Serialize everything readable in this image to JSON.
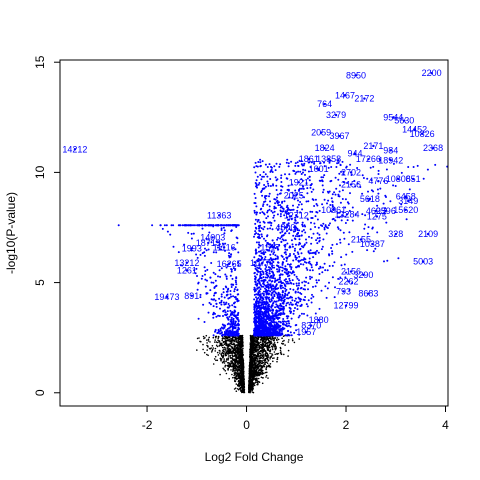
{
  "chart_data": {
    "type": "scatter",
    "xlabel": "Log2 Fold Change",
    "ylabel": "-log10(P-value)",
    "xlim": [
      -3.75,
      4.05
    ],
    "ylim": [
      -0.6,
      15.1
    ],
    "x_ticks": [
      -2,
      0,
      2,
      4
    ],
    "y_ticks": [
      0,
      5,
      10,
      15
    ],
    "grid": false,
    "colors": {
      "nonsignificant": "#000000",
      "significant": "#0000ff"
    },
    "significance_threshold_y": 2.6,
    "labeled_points": [
      {
        "label": "8950",
        "x": 2.2,
        "y": 14.4
      },
      {
        "label": "2200",
        "x": 3.72,
        "y": 14.5
      },
      {
        "label": "1467",
        "x": 1.98,
        "y": 13.5
      },
      {
        "label": "2172",
        "x": 2.37,
        "y": 13.35
      },
      {
        "label": "764",
        "x": 1.57,
        "y": 13.1
      },
      {
        "label": "3279",
        "x": 1.8,
        "y": 12.6
      },
      {
        "label": "9544",
        "x": 2.95,
        "y": 12.5
      },
      {
        "label": "5630",
        "x": 3.17,
        "y": 12.35
      },
      {
        "label": "14452",
        "x": 3.38,
        "y": 11.95
      },
      {
        "label": "10826",
        "x": 3.53,
        "y": 11.75
      },
      {
        "label": "2059",
        "x": 1.5,
        "y": 11.8
      },
      {
        "label": "3967",
        "x": 1.87,
        "y": 11.65
      },
      {
        "label": "2171",
        "x": 2.55,
        "y": 11.2
      },
      {
        "label": "1824",
        "x": 1.57,
        "y": 11.1
      },
      {
        "label": "944",
        "x": 2.18,
        "y": 10.85
      },
      {
        "label": "984",
        "x": 2.9,
        "y": 11.0
      },
      {
        "label": "2368",
        "x": 3.75,
        "y": 11.1
      },
      {
        "label": "14212",
        "x": -3.45,
        "y": 11.05
      },
      {
        "label": "1861",
        "x": 1.25,
        "y": 10.6
      },
      {
        "label": "13858",
        "x": 1.65,
        "y": 10.6
      },
      {
        "label": "17266",
        "x": 2.45,
        "y": 10.6
      },
      {
        "label": "18942",
        "x": 2.9,
        "y": 10.55
      },
      {
        "label": "1001",
        "x": 1.45,
        "y": 10.15
      },
      {
        "label": "2702",
        "x": 2.1,
        "y": 10.0
      },
      {
        "label": "4776",
        "x": 2.65,
        "y": 9.6
      },
      {
        "label": "10806",
        "x": 3.05,
        "y": 9.7
      },
      {
        "label": "851",
        "x": 3.35,
        "y": 9.7
      },
      {
        "label": "1921",
        "x": 1.05,
        "y": 9.55
      },
      {
        "label": "2156",
        "x": 2.1,
        "y": 9.45
      },
      {
        "label": "2025",
        "x": 0.95,
        "y": 8.95
      },
      {
        "label": "5618",
        "x": 2.48,
        "y": 8.8
      },
      {
        "label": "6458",
        "x": 3.2,
        "y": 8.9
      },
      {
        "label": "3149",
        "x": 3.25,
        "y": 8.7
      },
      {
        "label": "10961",
        "x": 1.75,
        "y": 8.3
      },
      {
        "label": "4695",
        "x": 2.6,
        "y": 8.25
      },
      {
        "label": "2396",
        "x": 2.8,
        "y": 8.25
      },
      {
        "label": "15620",
        "x": 3.2,
        "y": 8.3
      },
      {
        "label": "12712",
        "x": 1.0,
        "y": 8.05
      },
      {
        "label": "13284",
        "x": 2.02,
        "y": 8.1
      },
      {
        "label": "1275",
        "x": 2.62,
        "y": 8.0
      },
      {
        "label": "11363",
        "x": -0.55,
        "y": 8.05
      },
      {
        "label": "4800",
        "x": 0.78,
        "y": 7.5
      },
      {
        "label": "328",
        "x": 3.0,
        "y": 7.2
      },
      {
        "label": "2109",
        "x": 3.65,
        "y": 7.2
      },
      {
        "label": "14003",
        "x": -0.68,
        "y": 7.05
      },
      {
        "label": "2155",
        "x": 2.3,
        "y": 6.95
      },
      {
        "label": "10387",
        "x": 2.53,
        "y": 6.75
      },
      {
        "label": "18713",
        "x": -0.77,
        "y": 6.8
      },
      {
        "label": "1993",
        "x": -1.1,
        "y": 6.55
      },
      {
        "label": "11116",
        "x": -0.45,
        "y": 6.6
      },
      {
        "label": "1517",
        "x": 0.48,
        "y": 6.6
      },
      {
        "label": "5003",
        "x": 3.55,
        "y": 5.95
      },
      {
        "label": "13212",
        "x": -1.2,
        "y": 5.9
      },
      {
        "label": "16265",
        "x": -0.35,
        "y": 5.85
      },
      {
        "label": "10771",
        "x": 0.32,
        "y": 5.9
      },
      {
        "label": "1261",
        "x": -1.2,
        "y": 5.55
      },
      {
        "label": "2156",
        "x": 2.1,
        "y": 5.5
      },
      {
        "label": "3290",
        "x": 2.35,
        "y": 5.35
      },
      {
        "label": "2262",
        "x": 2.05,
        "y": 5.05
      },
      {
        "label": "8683",
        "x": 2.45,
        "y": 4.5
      },
      {
        "label": "793",
        "x": 1.95,
        "y": 4.6
      },
      {
        "label": "19473",
        "x": -1.6,
        "y": 4.35
      },
      {
        "label": "891",
        "x": -1.1,
        "y": 4.4
      },
      {
        "label": "12799",
        "x": 2.0,
        "y": 3.95
      },
      {
        "label": "1880",
        "x": 1.45,
        "y": 3.3
      },
      {
        "label": "8370",
        "x": 1.3,
        "y": 3.05
      },
      {
        "label": "1957",
        "x": 1.2,
        "y": 2.75
      }
    ]
  }
}
